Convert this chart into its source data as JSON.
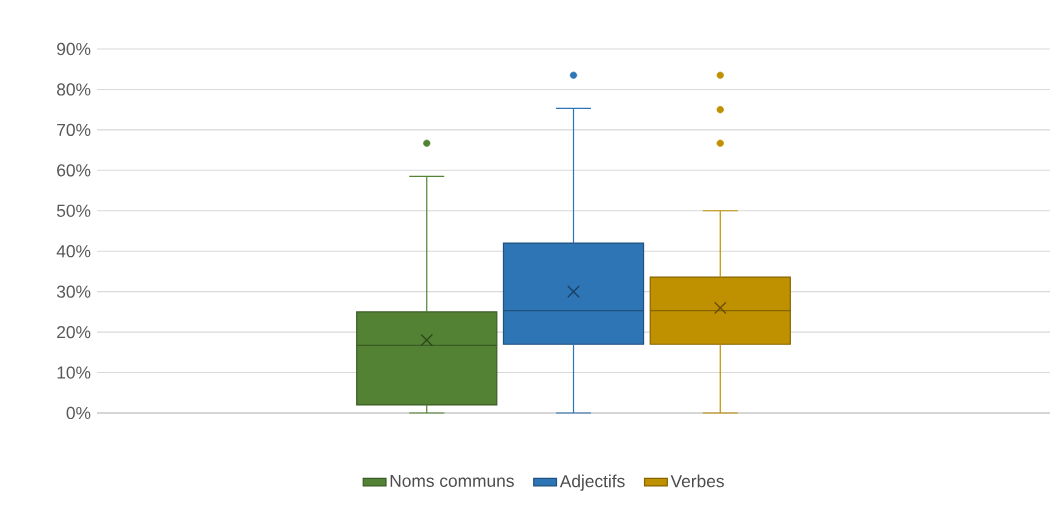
{
  "chart_data": {
    "type": "box",
    "categories": [
      null
    ],
    "series": [
      {
        "name": "Noms communs",
        "color": "#548235",
        "boxes": [
          {
            "low": 0,
            "q1": 2,
            "median": 16.7,
            "q3": 25,
            "high": 58.5,
            "mean": 18,
            "outliers": [
              66.7
            ]
          }
        ]
      },
      {
        "name": "Adjectifs",
        "color": "#2e75b6",
        "boxes": [
          {
            "low": 0,
            "q1": 17,
            "median": 25.3,
            "q3": 42,
            "high": 75.3,
            "mean": 30,
            "outliers": [
              83.5
            ]
          }
        ]
      },
      {
        "name": "Verbes",
        "color": "#bf9000",
        "boxes": [
          {
            "low": 0,
            "q1": 17,
            "median": 25.3,
            "q3": 33.6,
            "high": 50,
            "mean": 26,
            "outliers": [
              66.7,
              75,
              83.5
            ]
          }
        ]
      }
    ],
    "ylim": [
      0,
      90
    ],
    "yticks": [
      {
        "value": 0,
        "label": "0%"
      },
      {
        "value": 10,
        "label": "10%"
      },
      {
        "value": 20,
        "label": "20%"
      },
      {
        "value": 30,
        "label": "30%"
      },
      {
        "value": 40,
        "label": "40%"
      },
      {
        "value": 50,
        "label": "50%"
      },
      {
        "value": 60,
        "label": "60%"
      },
      {
        "value": 70,
        "label": "70%"
      },
      {
        "value": 80,
        "label": "80%"
      },
      {
        "value": 90,
        "label": "90%"
      }
    ],
    "grid": "y",
    "legend": "bottom",
    "marker": "circle"
  }
}
